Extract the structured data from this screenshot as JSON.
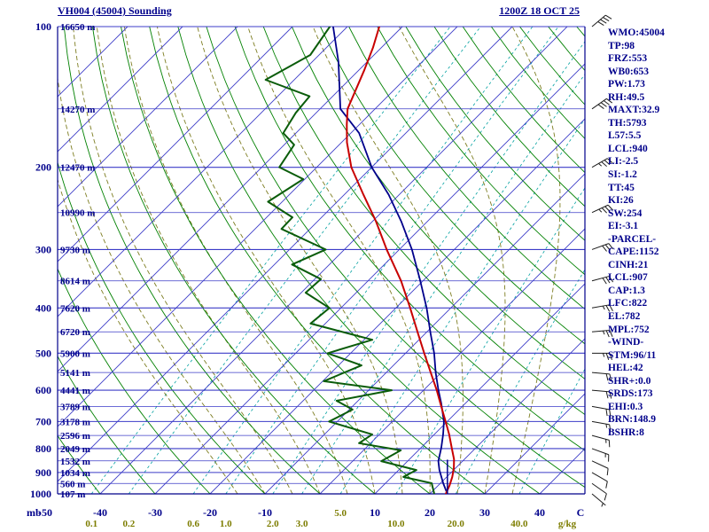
{
  "header": {
    "title": "VH004 (45004) Sounding",
    "datetime": "1200Z 18 OCT 25"
  },
  "stats_panel": {
    "lines": [
      "WMO:45004",
      "TP:98",
      "FRZ:553",
      "WB0:653",
      "PW:1.73",
      "RH:49.5",
      "MAXT:32.9",
      "TH:5793",
      "L57:5.5",
      "LCL:940",
      "LI:-2.5",
      "SI:-1.2",
      "TT:45",
      "KI:26",
      "SW:254",
      "EI:-3.1",
      "-PARCEL-",
      "CAPE:1152",
      "CINH:21",
      "LCL:907",
      "CAP:1.3",
      "LFC:822",
      "EL:782",
      "MPL:752",
      "-WIND-",
      "STM:96/11",
      "HEL:42",
      "SHR+:0.0",
      "SRDS:173",
      "EHI:0.3",
      "BRN:148.9",
      "BSHR:8"
    ]
  },
  "axes": {
    "pressure_unit": "mb",
    "temp_unit": "C",
    "mixing_unit": "g/kg",
    "pressure_labels": [
      100,
      200,
      300,
      400,
      500,
      600,
      700,
      800,
      900,
      1000
    ],
    "height_labels": [
      {
        "p": 100,
        "label": "16650 m"
      },
      {
        "p": 150,
        "label": "14270 m"
      },
      {
        "p": 200,
        "label": "12470 m"
      },
      {
        "p": 250,
        "label": "10990 m"
      },
      {
        "p": 300,
        "label": "9730 m"
      },
      {
        "p": 350,
        "label": "8614 m"
      },
      {
        "p": 400,
        "label": "7620 m"
      },
      {
        "p": 450,
        "label": "6720 m"
      },
      {
        "p": 500,
        "label": "5900 m"
      },
      {
        "p": 550,
        "label": "5141 m"
      },
      {
        "p": 600,
        "label": "4441 m"
      },
      {
        "p": 650,
        "label": "3789 m"
      },
      {
        "p": 700,
        "label": "3178 m"
      },
      {
        "p": 750,
        "label": "2596 m"
      },
      {
        "p": 800,
        "label": "2049 m"
      },
      {
        "p": 850,
        "label": "1532 m"
      },
      {
        "p": 900,
        "label": "1034 m"
      },
      {
        "p": 950,
        "label": "560 m"
      },
      {
        "p": 1000,
        "label": "107 m"
      }
    ],
    "temp_labels": [
      {
        "label": "-50",
        "t": -50
      },
      {
        "label": "-40",
        "t": -40
      },
      {
        "label": "-30",
        "t": -30
      },
      {
        "label": "-20",
        "t": -20
      },
      {
        "label": "-10",
        "t": -10
      },
      {
        "label": "10",
        "t": 10
      },
      {
        "label": "20",
        "t": 20
      },
      {
        "label": "30",
        "t": 30
      },
      {
        "label": "40",
        "t": 40
      }
    ],
    "mixing_labels": [
      {
        "label": "0.1",
        "w": 0.1,
        "row": 2
      },
      {
        "label": "0.2",
        "w": 0.2,
        "row": 2
      },
      {
        "label": "0.6",
        "w": 0.6,
        "row": 2
      },
      {
        "label": "1.0",
        "w": 1.0,
        "row": 2
      },
      {
        "label": "2.0",
        "w": 2.0,
        "row": 2
      },
      {
        "label": "3.0",
        "w": 3.0,
        "row": 2
      },
      {
        "label": "5.0",
        "w": 5.0,
        "row": 1
      },
      {
        "label": "10.0",
        "w": 10.0,
        "row": 2
      },
      {
        "label": "20.0",
        "w": 20.0,
        "row": 2
      },
      {
        "label": "40.0",
        "w": 40.0,
        "row": 2
      }
    ]
  },
  "chart_data": {
    "type": "line",
    "chart_kind": "skew-t-log-p-sounding",
    "title": "VH004 (45004) Sounding",
    "valid_time": "1200Z 18 OCT 25",
    "y_axis": {
      "unit": "mb",
      "scale": "log",
      "range": [
        100,
        1000
      ],
      "ticks": [
        100,
        200,
        300,
        400,
        500,
        600,
        700,
        800,
        900,
        1000
      ]
    },
    "x_axis": {
      "unit": "C",
      "surface_ticks": [
        -50,
        -40,
        -30,
        -20,
        -10,
        10,
        20,
        30,
        40
      ],
      "skew_deg": 45
    },
    "isobars_mb": {
      "from": 100,
      "to": 1000,
      "step": 50
    },
    "isotherms_c": {
      "from": -120,
      "to": 40,
      "step": 10
    },
    "dry_adiabats_c": {
      "from": -40,
      "to": 180,
      "step": 10
    },
    "moist_adiabats_c": [
      -15,
      -10,
      -5,
      0,
      5,
      10,
      15,
      20,
      25,
      30,
      35
    ],
    "mixing_ratio_lines": [
      0.1,
      0.2,
      0.6,
      1.0,
      2.0,
      3.0,
      5.0,
      10.0,
      20.0,
      40.0
    ],
    "series": [
      {
        "name": "temperature",
        "color": "#c80000",
        "points": [
          [
            1000,
            22.9
          ],
          [
            961,
            22.1
          ],
          [
            920,
            21
          ],
          [
            881,
            19.7
          ],
          [
            843,
            18.1
          ],
          [
            797,
            15.6
          ],
          [
            746,
            12.7
          ],
          [
            700,
            9.7
          ],
          [
            649,
            6.1
          ],
          [
            600,
            2.4
          ],
          [
            550,
            -1.9
          ],
          [
            500,
            -6.6
          ],
          [
            452,
            -11.5
          ],
          [
            400,
            -17.4
          ],
          [
            350,
            -24
          ],
          [
            300,
            -32.3
          ],
          [
            261,
            -39.4
          ],
          [
            229,
            -46.5
          ],
          [
            200,
            -53.7
          ],
          [
            177,
            -59
          ],
          [
            162,
            -62.3
          ],
          [
            150,
            -65
          ],
          [
            124,
            -69
          ],
          [
            111,
            -71.5
          ],
          [
            100,
            -74.2
          ]
        ]
      },
      {
        "name": "dewpoint",
        "color": "#0a5c0a",
        "points": [
          [
            1000,
            20.8
          ],
          [
            949,
            18.4
          ],
          [
            920,
            12.1
          ],
          [
            889,
            13.2
          ],
          [
            851,
            5.2
          ],
          [
            807,
            6.8
          ],
          [
            779,
            -2.1
          ],
          [
            746,
            -1.3
          ],
          [
            700,
            -11.5
          ],
          [
            660,
            -9.4
          ],
          [
            632,
            -13.9
          ],
          [
            600,
            -5.8
          ],
          [
            574,
            -19.8
          ],
          [
            531,
            -15.8
          ],
          [
            500,
            -24.2
          ],
          [
            468,
            -18.5
          ],
          [
            432,
            -32.7
          ],
          [
            400,
            -32.1
          ],
          [
            371,
            -39.2
          ],
          [
            347,
            -38.9
          ],
          [
            323,
            -46.8
          ],
          [
            300,
            -43.4
          ],
          [
            271,
            -55.2
          ],
          [
            256,
            -55.3
          ],
          [
            237,
            -62.6
          ],
          [
            212,
            -60.3
          ],
          [
            200,
            -66.8
          ],
          [
            179,
            -68.2
          ],
          [
            169,
            -72.3
          ],
          [
            153,
            -73.7
          ],
          [
            141,
            -74.2
          ],
          [
            130,
            -85.2
          ],
          [
            115,
            -81.6
          ],
          [
            100,
            -83.2
          ]
        ]
      },
      {
        "name": "parcel",
        "color": "#00008b",
        "points": [
          [
            1000,
            23.2
          ],
          [
            949,
            20.5
          ],
          [
            889,
            17.4
          ],
          [
            851,
            15.6
          ],
          [
            797,
            13.7
          ],
          [
            746,
            11.6
          ],
          [
            700,
            9.4
          ],
          [
            640,
            5.6
          ],
          [
            600,
            2.7
          ],
          [
            550,
            -1
          ],
          [
            500,
            -4.8
          ],
          [
            452,
            -9.2
          ],
          [
            400,
            -14.4
          ],
          [
            350,
            -20.5
          ],
          [
            300,
            -27.7
          ],
          [
            261,
            -34.8
          ],
          [
            229,
            -41.9
          ],
          [
            200,
            -50
          ],
          [
            169,
            -58.5
          ],
          [
            150,
            -66.3
          ],
          [
            119,
            -75.2
          ],
          [
            100,
            -82.6
          ]
        ]
      }
    ],
    "surface_parcel_segment": {
      "temp_c": 23.2,
      "p_from": 1000,
      "p_to": 845
    },
    "wind_barbs": [
      [
        1000,
        130,
        5
      ],
      [
        950,
        125,
        10
      ],
      [
        900,
        120,
        10
      ],
      [
        850,
        115,
        10
      ],
      [
        800,
        110,
        15
      ],
      [
        750,
        105,
        15
      ],
      [
        700,
        100,
        15
      ],
      [
        650,
        100,
        20
      ],
      [
        600,
        95,
        20
      ],
      [
        550,
        95,
        20
      ],
      [
        500,
        90,
        25
      ],
      [
        450,
        85,
        25
      ],
      [
        400,
        80,
        25
      ],
      [
        350,
        75,
        30
      ],
      [
        300,
        70,
        30
      ],
      [
        250,
        65,
        35
      ],
      [
        200,
        60,
        35
      ],
      [
        150,
        55,
        40
      ],
      [
        100,
        50,
        40
      ]
    ]
  },
  "colors": {
    "text": "#00008b",
    "isolines": "#3c3cc8",
    "dry_adiabat": "#008000",
    "moist_adiabat": "#7d7d21",
    "mixing_ratio": "#00a0a0",
    "temperature": "#c80000",
    "dewpoint": "#0a5c0a",
    "parcel": "#00008b",
    "barb": "#1c1c1c",
    "mixing_label": "#7d7d00"
  }
}
